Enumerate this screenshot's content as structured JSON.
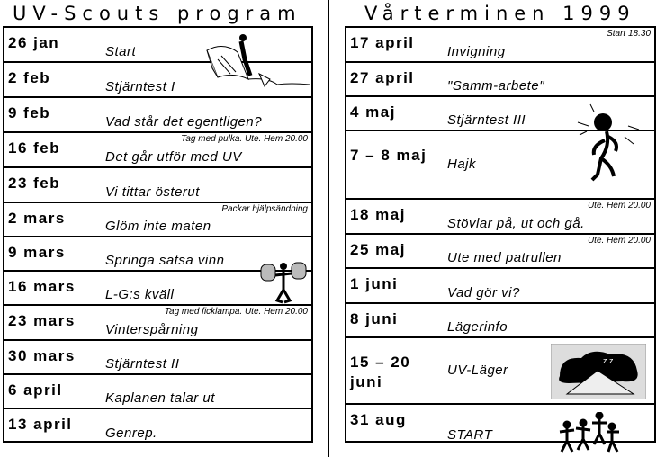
{
  "left": {
    "title": "UV-Scouts program",
    "rows": [
      {
        "date": "26 jan",
        "event": "Start",
        "note": ""
      },
      {
        "date": "2 feb",
        "event": "Stjärntest I",
        "note": ""
      },
      {
        "date": "9 feb",
        "event": "Vad står det egentligen?",
        "note": ""
      },
      {
        "date": "16 feb",
        "event": "Det går utför med UV",
        "note": "Tag med pulka. Ute. Hem 20.00"
      },
      {
        "date": "23 feb",
        "event": "Vi tittar österut",
        "note": ""
      },
      {
        "date": "2 mars",
        "event": "Glöm inte maten",
        "note": "Packar hjälpsändning"
      },
      {
        "date": "9 mars",
        "event": "Springa satsa vinn",
        "note": ""
      },
      {
        "date": "16 mars",
        "event": "L-G:s kväll",
        "note": ""
      },
      {
        "date": "23 mars",
        "event": "Vinterspårning",
        "note": "Tag med ficklampa. Ute. Hem 20.00"
      },
      {
        "date": "30 mars",
        "event": "Stjärntest II",
        "note": ""
      },
      {
        "date": "6 april",
        "event": "Kaplanen talar ut",
        "note": ""
      },
      {
        "date": "13 april",
        "event": "Genrep.",
        "note": ""
      }
    ]
  },
  "right": {
    "title": "Vårterminen 1999",
    "rows": [
      {
        "date": "17 april",
        "event": "Invigning",
        "note": "Start 18.30"
      },
      {
        "date": "27 april",
        "event": "\"Samm-arbete\"",
        "note": ""
      },
      {
        "date": "4 maj",
        "event": "Stjärntest III",
        "note": ""
      },
      {
        "date": "7 – 8 maj",
        "event": "Hajk",
        "note": ""
      },
      {
        "date": "18 maj",
        "event": "Stövlar på, ut och gå.",
        "note": "Ute. Hem 20.00"
      },
      {
        "date": "25 maj",
        "event": "Ute med patrullen",
        "note": "Ute. Hem 20.00"
      },
      {
        "date": "1 juni",
        "event": "Vad gör vi?",
        "note": ""
      },
      {
        "date": "8 juni",
        "event": "Lägerinfo",
        "note": ""
      },
      {
        "date": "15 – 20 juni",
        "event": "UV-Läger",
        "note": ""
      },
      {
        "date": "31 aug",
        "event": "START",
        "note": ""
      }
    ]
  }
}
